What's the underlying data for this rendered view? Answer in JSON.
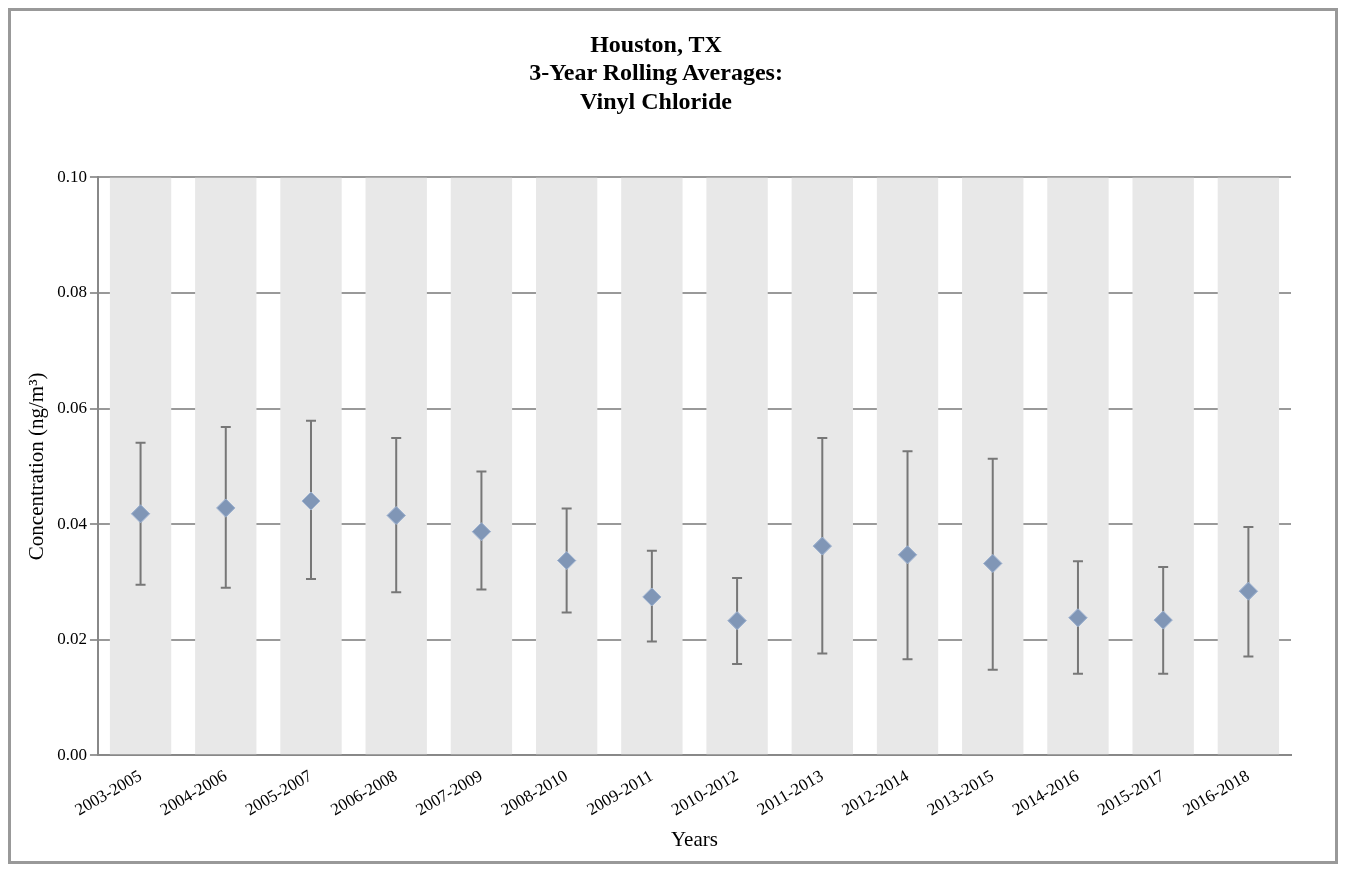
{
  "chart_data": {
    "type": "scatter",
    "title": "Houston, TX\n3-Year Rolling Averages:\nVinyl Chloride",
    "xlabel": "Years",
    "ylabel": "Concentration (ng/m³)",
    "categories": [
      "2003-2005",
      "2004-2006",
      "2005-2007",
      "2006-2008",
      "2007-2009",
      "2008-2010",
      "2009-2011",
      "2010-2012",
      "2011-2013",
      "2012-2014",
      "2013-2015",
      "2014-2016",
      "2015-2017",
      "2016-2018"
    ],
    "series": [
      {
        "type": "bar",
        "color": "#e8e8e8",
        "values": [
          0.1,
          0.1,
          0.1,
          0.1,
          0.1,
          0.1,
          0.1,
          0.1,
          0.1,
          0.1,
          0.1,
          0.1,
          0.1,
          0.1
        ]
      },
      {
        "color": "#8096b6",
        "marker": "diamond",
        "values": [
          0.0418,
          0.0428,
          0.044,
          0.0415,
          0.0387,
          0.0337,
          0.0274,
          0.0233,
          0.0362,
          0.0347,
          0.0332,
          0.0238,
          0.0234,
          0.0284
        ],
        "errors": [
          [
            0.0295,
            0.0541
          ],
          [
            0.029,
            0.0568
          ],
          [
            0.0305,
            0.0579
          ],
          [
            0.0282,
            0.0549
          ],
          [
            0.0287,
            0.0491
          ],
          [
            0.0247,
            0.0427
          ],
          [
            0.0197,
            0.0354
          ],
          [
            0.0158,
            0.0307
          ],
          [
            0.0176,
            0.0549
          ],
          [
            0.0166,
            0.0526
          ],
          [
            0.0148,
            0.0513
          ],
          [
            0.0141,
            0.0336
          ],
          [
            0.0141,
            0.0326
          ],
          [
            0.0171,
            0.0395
          ]
        ]
      }
    ],
    "ylim": [
      0,
      0.1
    ],
    "yticks": [
      {
        "value": 0,
        "label": "0.00"
      },
      {
        "value": 0.02,
        "label": "0.02"
      },
      {
        "value": 0.04,
        "label": "0.04"
      },
      {
        "value": 0.06,
        "label": "0.06"
      },
      {
        "value": 0.08,
        "label": "0.08"
      },
      {
        "value": 0.1,
        "label": "0.10"
      }
    ],
    "grid": "y",
    "legend": false
  }
}
